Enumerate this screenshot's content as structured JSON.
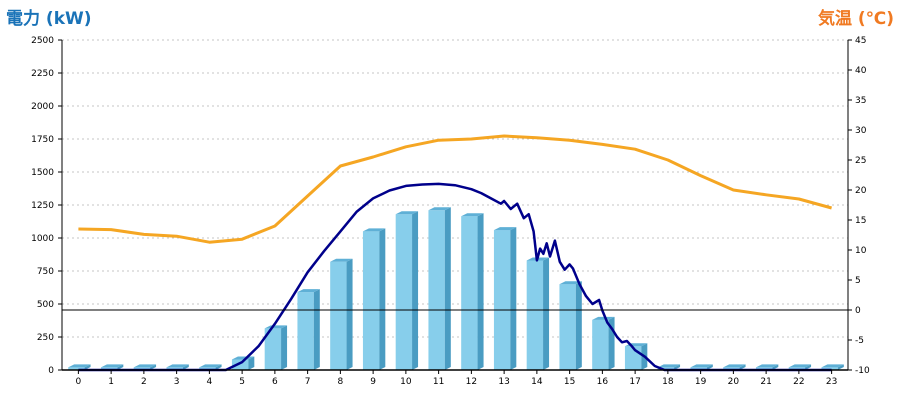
{
  "chart_data": {
    "type": "bar",
    "left_axis_title": "電力 (kW)",
    "right_axis_title": "気温 (℃)",
    "categories": [
      "0",
      "1",
      "2",
      "3",
      "4",
      "5",
      "6",
      "7",
      "8",
      "9",
      "10",
      "11",
      "12",
      "13",
      "14",
      "15",
      "16",
      "17",
      "18",
      "19",
      "20",
      "21",
      "22",
      "23"
    ],
    "y_left": {
      "min": 0,
      "max": 2500,
      "ticks": [
        0,
        250,
        500,
        750,
        1000,
        1250,
        1500,
        1750,
        2000,
        2250,
        2500
      ]
    },
    "y_right": {
      "min": -10,
      "max": 45,
      "ticks": [
        -10,
        -5,
        0,
        5,
        10,
        15,
        20,
        25,
        30,
        35,
        40,
        45
      ]
    },
    "grid": true,
    "reference_line": {
      "axis": "right",
      "value": 0
    },
    "bars": {
      "axis": "left",
      "color": "#87ceeb",
      "values": [
        20,
        20,
        20,
        20,
        20,
        80,
        315,
        590,
        820,
        1050,
        1180,
        1210,
        1165,
        1060,
        830,
        650,
        380,
        180,
        20,
        20,
        20,
        20,
        20,
        20
      ]
    },
    "power_line": {
      "axis": "left",
      "color": "#00008b",
      "points": [
        [
          0,
          0
        ],
        [
          1,
          0
        ],
        [
          2,
          0
        ],
        [
          3,
          0
        ],
        [
          4,
          0
        ],
        [
          4.5,
          0
        ],
        [
          5,
          60
        ],
        [
          5.5,
          180
        ],
        [
          6,
          350
        ],
        [
          6.5,
          540
        ],
        [
          7,
          740
        ],
        [
          7.5,
          900
        ],
        [
          8,
          1050
        ],
        [
          8.5,
          1200
        ],
        [
          9,
          1300
        ],
        [
          9.5,
          1360
        ],
        [
          10,
          1395
        ],
        [
          10.5,
          1405
        ],
        [
          11,
          1410
        ],
        [
          11.5,
          1400
        ],
        [
          12,
          1370
        ],
        [
          12.3,
          1340
        ],
        [
          12.6,
          1300
        ],
        [
          12.9,
          1260
        ],
        [
          13,
          1280
        ],
        [
          13.2,
          1220
        ],
        [
          13.4,
          1260
        ],
        [
          13.6,
          1150
        ],
        [
          13.75,
          1180
        ],
        [
          13.9,
          1050
        ],
        [
          14,
          830
        ],
        [
          14.1,
          920
        ],
        [
          14.2,
          880
        ],
        [
          14.3,
          960
        ],
        [
          14.4,
          860
        ],
        [
          14.55,
          980
        ],
        [
          14.7,
          820
        ],
        [
          14.85,
          760
        ],
        [
          15,
          800
        ],
        [
          15.1,
          770
        ],
        [
          15.3,
          650
        ],
        [
          15.5,
          560
        ],
        [
          15.7,
          500
        ],
        [
          15.9,
          530
        ],
        [
          16,
          450
        ],
        [
          16.15,
          360
        ],
        [
          16.3,
          310
        ],
        [
          16.45,
          250
        ],
        [
          16.6,
          210
        ],
        [
          16.75,
          220
        ],
        [
          16.9,
          180
        ],
        [
          17,
          150
        ],
        [
          17.3,
          100
        ],
        [
          17.6,
          30
        ],
        [
          17.9,
          0
        ],
        [
          18,
          0
        ],
        [
          19,
          0
        ],
        [
          20,
          0
        ],
        [
          21,
          0
        ],
        [
          22,
          0
        ],
        [
          23,
          0
        ]
      ]
    },
    "temperature_line": {
      "axis": "right",
      "color": "#f5a623",
      "points": [
        [
          0,
          13.5
        ],
        [
          1,
          13.4
        ],
        [
          2,
          12.6
        ],
        [
          3,
          12.3
        ],
        [
          4,
          11.3
        ],
        [
          5,
          11.8
        ],
        [
          6,
          14
        ],
        [
          7,
          19
        ],
        [
          8,
          24
        ],
        [
          9,
          25.5
        ],
        [
          10,
          27.2
        ],
        [
          11,
          28.3
        ],
        [
          12,
          28.5
        ],
        [
          13,
          29
        ],
        [
          14,
          28.7
        ],
        [
          15,
          28.3
        ],
        [
          16,
          27.6
        ],
        [
          17,
          26.8
        ],
        [
          18,
          25
        ],
        [
          19,
          22.4
        ],
        [
          20,
          20
        ],
        [
          21,
          19.2
        ],
        [
          22,
          18.5
        ],
        [
          23,
          17
        ]
      ]
    }
  }
}
